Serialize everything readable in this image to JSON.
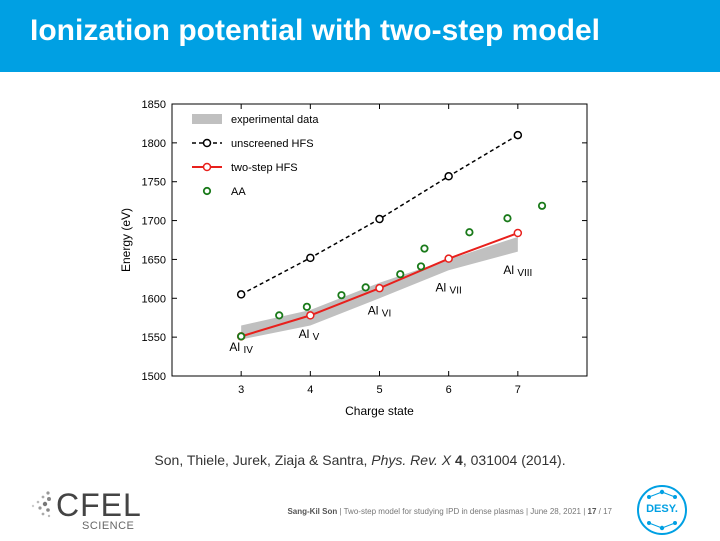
{
  "slide": {
    "title": "Ionization potential with two-step model"
  },
  "chart_data": {
    "type": "line",
    "xlabel": "Charge state",
    "ylabel": "Energy (eV)",
    "xlim": [
      2,
      8
    ],
    "ylim": [
      1500,
      1850
    ],
    "xticks": [
      3,
      4,
      5,
      6,
      7
    ],
    "yticks": [
      1500,
      1550,
      1600,
      1650,
      1700,
      1750,
      1800,
      1850
    ],
    "ytick_labels": [
      "1500",
      "1550",
      "1600",
      "1650",
      "1700",
      "1750",
      "1800",
      "1850"
    ],
    "legend_position": "top-left",
    "legend": [
      "experimental data",
      "unscreened HFS",
      "two-step HFS",
      "AA"
    ],
    "series": [
      {
        "name": "experimental data",
        "style": "band",
        "color": "#c0c0c0",
        "x": [
          3,
          4,
          5,
          6,
          7
        ],
        "upper": [
          1565,
          1585,
          1620,
          1650,
          1679
        ],
        "lower": [
          1547,
          1565,
          1600,
          1636,
          1660
        ]
      },
      {
        "name": "unscreened HFS",
        "style": "dashed",
        "color": "#000000",
        "x": [
          3,
          4,
          5,
          6,
          7
        ],
        "y": [
          1605,
          1652,
          1702,
          1757,
          1810
        ]
      },
      {
        "name": "two-step HFS",
        "style": "solid",
        "color": "#e8201c",
        "x": [
          3,
          4,
          5,
          6,
          7
        ],
        "y": [
          1551,
          1578,
          1613,
          1651,
          1684
        ]
      },
      {
        "name": "AA",
        "style": "markers",
        "color": "#1a7a1a",
        "x": [
          3,
          3.55,
          3.95,
          4.45,
          4.8,
          5.3,
          5.6,
          5.65,
          6.3,
          6.85,
          7.35
        ],
        "y": [
          1551,
          1578,
          1589,
          1604,
          1614,
          1631,
          1641,
          1664,
          1685,
          1703,
          1719
        ]
      }
    ],
    "annotations": [
      {
        "text": "Al",
        "sub": "IV",
        "x": 3,
        "y": 1532
      },
      {
        "text": "Al",
        "sub": "V",
        "x": 3.98,
        "y": 1549
      },
      {
        "text": "Al",
        "sub": "VI",
        "x": 5,
        "y": 1579
      },
      {
        "text": "Al",
        "sub": "VII",
        "x": 6,
        "y": 1609
      },
      {
        "text": "Al",
        "sub": "VIII",
        "x": 7,
        "y": 1631
      }
    ]
  },
  "reference": {
    "authors": "Son, Thiele, Jurek, Ziaja & Santra, ",
    "journal": "Phys. Rev. X",
    "volume": " 4",
    "rest": ", 031004 (2014)."
  },
  "footer": {
    "presenter": "Sang-Kil Son",
    "talk": "Two-step model for studying IPD in dense plasmas",
    "date": "June 28, 2021",
    "page": "17",
    "total": "/ 17",
    "sep": "|"
  },
  "logos": {
    "cfel": "CFEL",
    "cfel_sub": "SCIENCE",
    "desy": "DESY."
  },
  "colors": {
    "title_bar": "#00a0e3",
    "two_step": "#e8201c",
    "aa": "#1a7a1a",
    "band": "#c0c0c0"
  }
}
